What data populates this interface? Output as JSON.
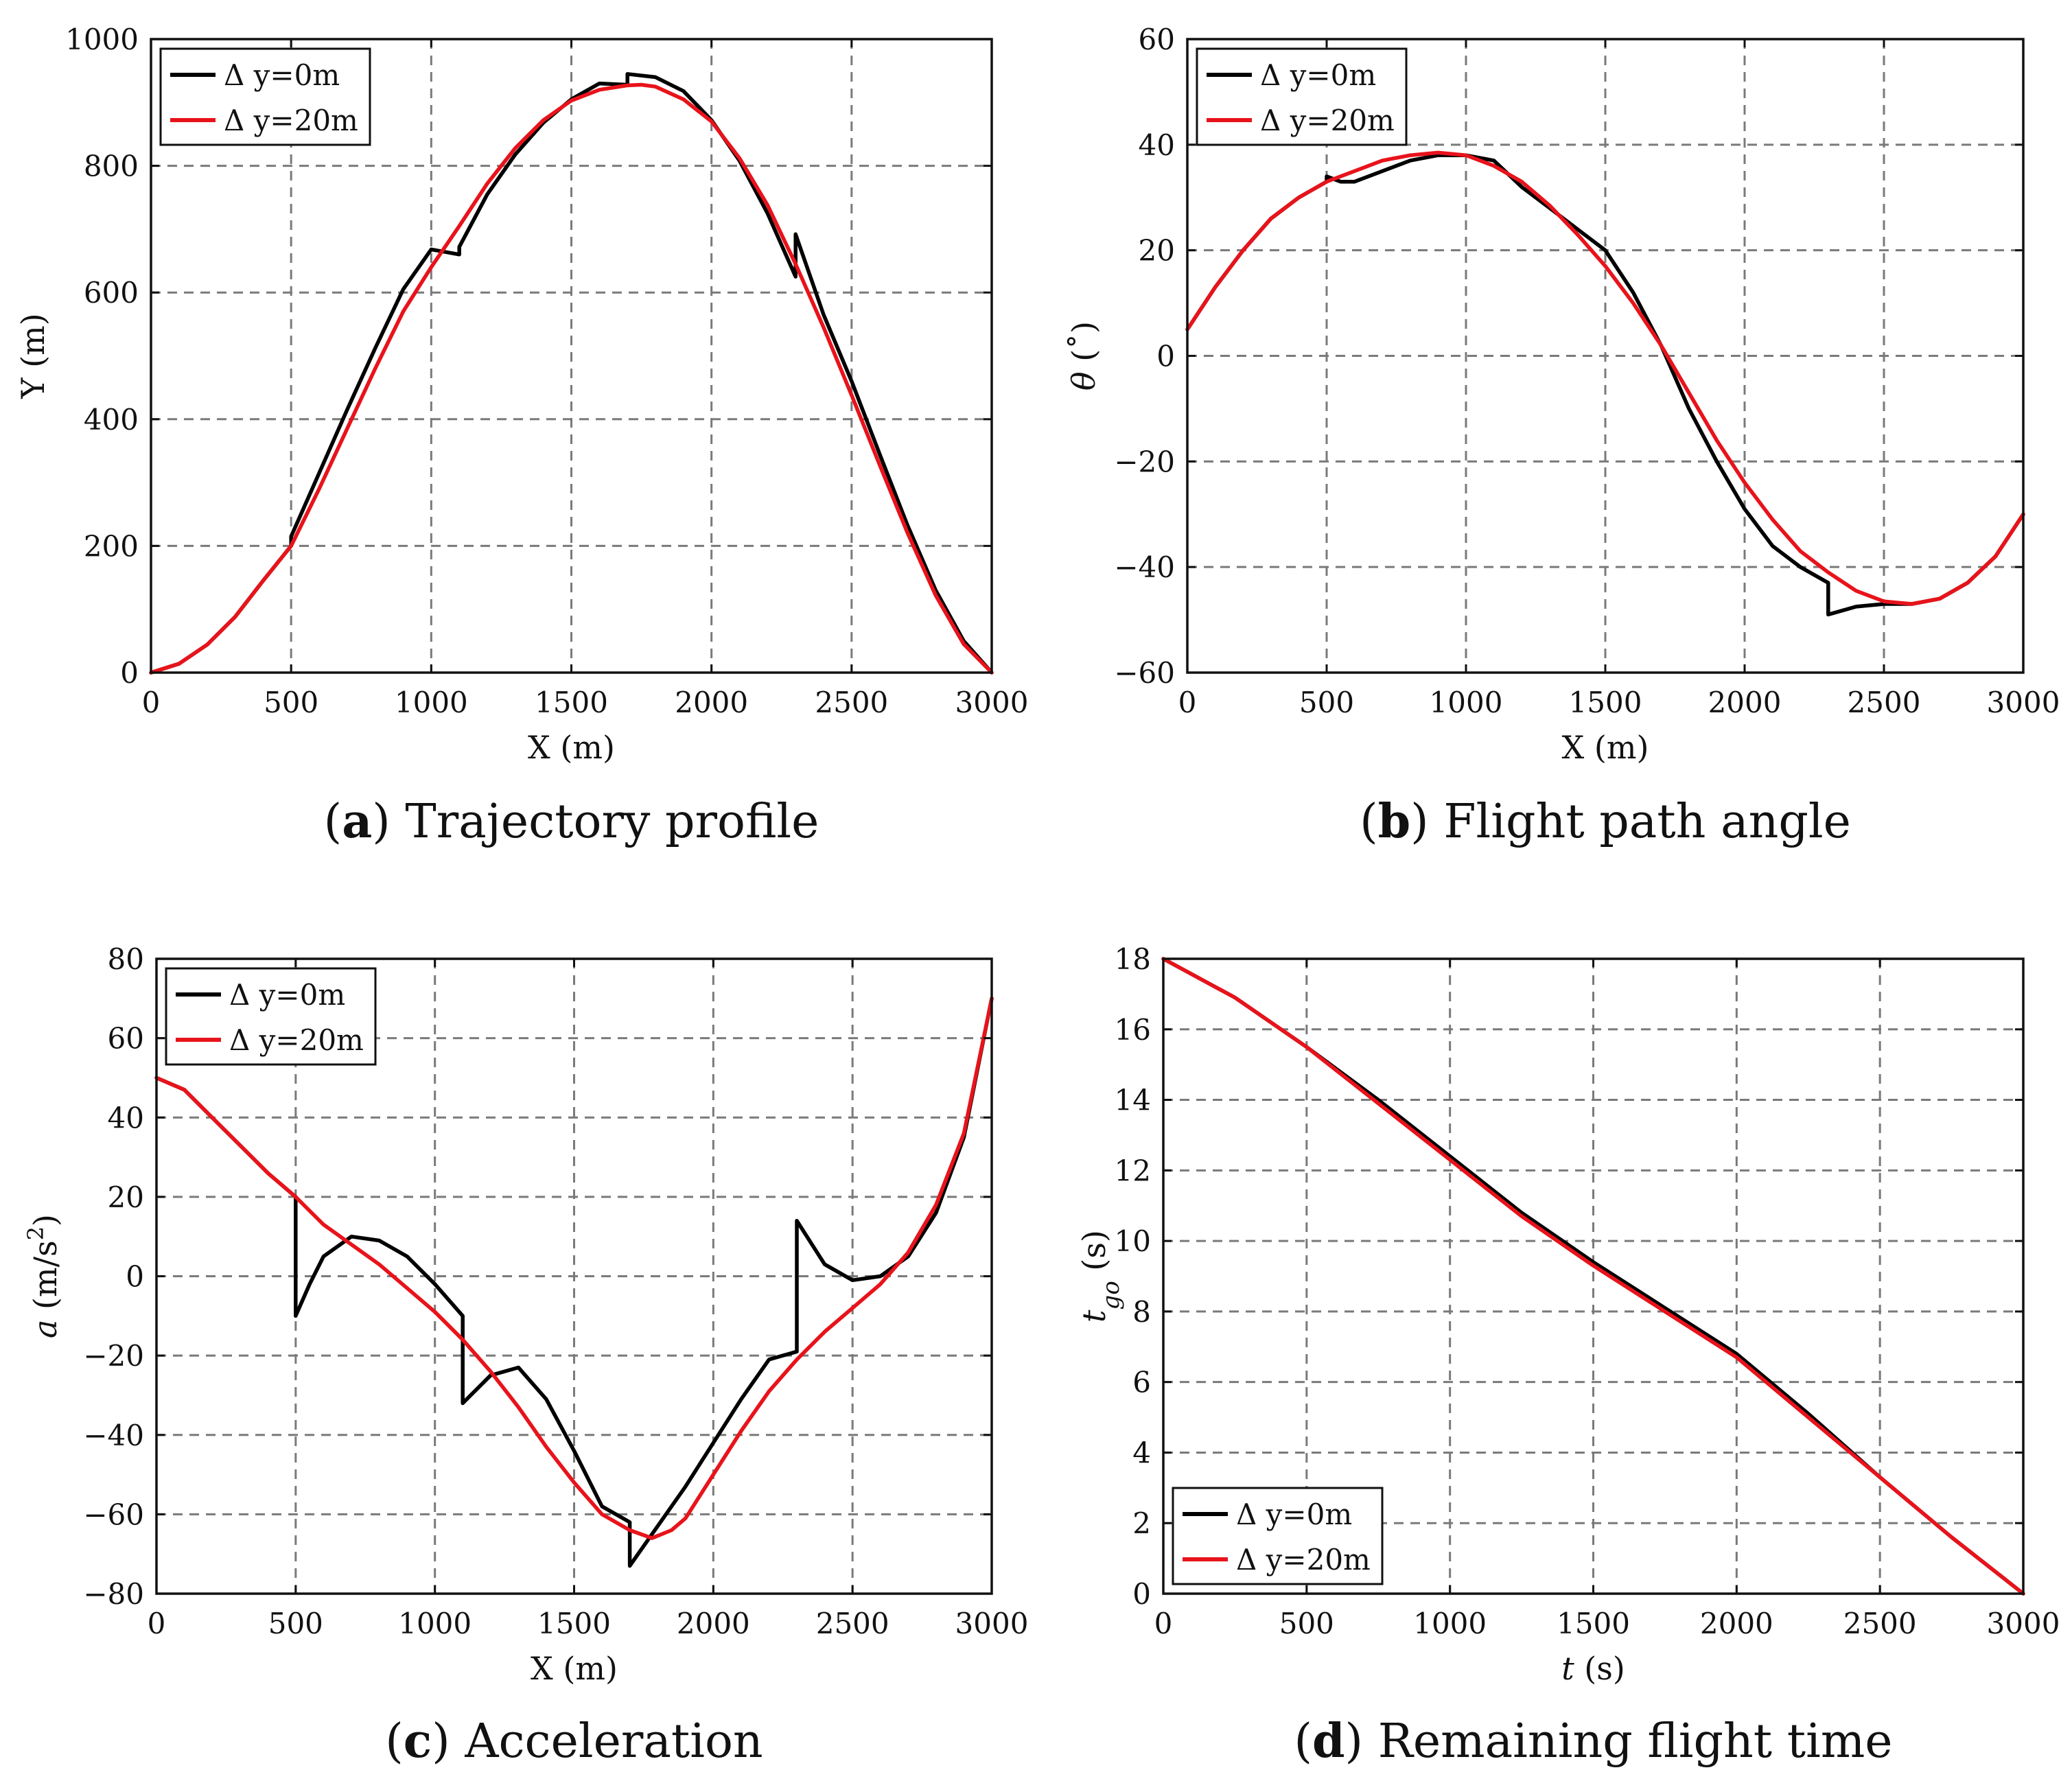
{
  "figure": {
    "colors": {
      "series_0": "#000000",
      "series_1": "#e8131b",
      "grid": "#7a7a7a"
    }
  },
  "chart_data": [
    {
      "id": "a",
      "type": "line",
      "caption_letter": "a",
      "caption_text": "Trajectory profile",
      "xlabel": "X (m)",
      "ylabel": "Y (m)",
      "xlim": [
        0,
        3000
      ],
      "ylim": [
        0,
        1000
      ],
      "xticks": [
        0,
        500,
        1000,
        1500,
        2000,
        2500,
        3000
      ],
      "yticks": [
        0,
        200,
        400,
        600,
        800,
        1000
      ],
      "tick_labels_x": [
        "0",
        "500",
        "1000",
        "1500",
        "2000",
        "2500",
        "3000"
      ],
      "tick_labels_y": [
        "0",
        "200",
        "400",
        "600",
        "800",
        "1000"
      ],
      "grid": true,
      "legend_position": "top-left",
      "series": [
        {
          "name": "Δ y=0m",
          "color": "#000000",
          "x": [
            0,
            100,
            200,
            300,
            400,
            500,
            500,
            600,
            700,
            800,
            900,
            1000,
            1100,
            1100,
            1200,
            1300,
            1400,
            1500,
            1600,
            1700,
            1700,
            1800,
            1900,
            2000,
            2100,
            2200,
            2300,
            2300,
            2400,
            2500,
            2600,
            2700,
            2800,
            2900,
            3000
          ],
          "values": [
            0,
            14,
            44,
            88,
            145,
            200,
            215,
            315,
            415,
            512,
            605,
            668,
            660,
            672,
            755,
            818,
            868,
            905,
            930,
            928,
            945,
            940,
            918,
            872,
            808,
            725,
            625,
            692,
            565,
            460,
            345,
            232,
            130,
            50,
            0
          ]
        },
        {
          "name": "Δ y=20m",
          "color": "#e8131b",
          "x": [
            0,
            100,
            200,
            300,
            400,
            500,
            600,
            700,
            800,
            900,
            1000,
            1100,
            1200,
            1300,
            1400,
            1500,
            1600,
            1700,
            1750,
            1800,
            1900,
            2000,
            2100,
            2200,
            2300,
            2400,
            2500,
            2600,
            2700,
            2800,
            2900,
            3000
          ],
          "values": [
            0,
            14,
            44,
            88,
            145,
            200,
            290,
            385,
            480,
            570,
            640,
            705,
            772,
            828,
            872,
            903,
            920,
            927,
            928,
            925,
            905,
            870,
            812,
            738,
            645,
            545,
            438,
            328,
            220,
            122,
            45,
            0
          ]
        }
      ]
    },
    {
      "id": "b",
      "type": "line",
      "caption_letter": "b",
      "caption_text": "Flight path angle",
      "xlabel": "X (m)",
      "ylabel": "θ (˚)",
      "xlim": [
        0,
        3000
      ],
      "ylim": [
        -60,
        60
      ],
      "xticks": [
        0,
        500,
        1000,
        1500,
        2000,
        2500,
        3000
      ],
      "yticks": [
        -60,
        -40,
        -20,
        0,
        20,
        40,
        60
      ],
      "tick_labels_x": [
        "0",
        "500",
        "1000",
        "1500",
        "2000",
        "2500",
        "3000"
      ],
      "tick_labels_y": [
        "−60",
        "−40",
        "−20",
        "0",
        "20",
        "40",
        "60"
      ],
      "grid": true,
      "legend_position": "top-left",
      "series": [
        {
          "name": "Δ y=0m",
          "color": "#000000",
          "x": [
            0,
            100,
            200,
            300,
            400,
            500,
            500,
            550,
            600,
            700,
            800,
            900,
            1000,
            1100,
            1100,
            1200,
            1300,
            1400,
            1500,
            1600,
            1700,
            1700,
            1800,
            1900,
            2000,
            2100,
            2200,
            2300,
            2300,
            2400,
            2500,
            2600,
            2700,
            2800,
            2900,
            3000
          ],
          "values": [
            5,
            13,
            20,
            26,
            30,
            33,
            34,
            33,
            33,
            35,
            37,
            38,
            38,
            37,
            37,
            32,
            28,
            24,
            20,
            12,
            2,
            2,
            -10,
            -20,
            -29,
            -36,
            -40,
            -43,
            -49,
            -47.5,
            -47,
            -47,
            -46,
            -43,
            -38,
            -30
          ]
        },
        {
          "name": "Δ y=20m",
          "color": "#e8131b",
          "x": [
            0,
            100,
            200,
            300,
            400,
            500,
            600,
            700,
            800,
            900,
            1000,
            1100,
            1200,
            1300,
            1400,
            1500,
            1600,
            1700,
            1800,
            1900,
            2000,
            2100,
            2200,
            2300,
            2400,
            2500,
            2600,
            2700,
            2800,
            2900,
            3000
          ],
          "values": [
            5,
            13,
            20,
            26,
            30,
            33,
            35,
            37,
            38,
            38.5,
            38,
            36,
            33,
            28.5,
            23,
            17,
            10,
            2,
            -7,
            -16,
            -24,
            -31,
            -37,
            -41,
            -44.5,
            -46.5,
            -47,
            -46,
            -43,
            -38,
            -30
          ]
        }
      ]
    },
    {
      "id": "c",
      "type": "line",
      "caption_letter": "c",
      "caption_text": "Acceleration",
      "xlabel": "X (m)",
      "ylabel": "a (m/s2)",
      "ylabel_parts": {
        "symbol": "a",
        "unit_base": "(m/s",
        "unit_exponent": "2",
        "unit_close": ")"
      },
      "xlim": [
        0,
        3000
      ],
      "ylim": [
        -80,
        80
      ],
      "xticks": [
        0,
        500,
        1000,
        1500,
        2000,
        2500,
        3000
      ],
      "yticks": [
        -80,
        -60,
        -40,
        -20,
        0,
        20,
        40,
        60,
        80
      ],
      "tick_labels_x": [
        "0",
        "500",
        "1000",
        "1500",
        "2000",
        "2500",
        "3000"
      ],
      "tick_labels_y": [
        "−80",
        "−60",
        "−40",
        "−20",
        "0",
        "20",
        "40",
        "60",
        "80"
      ],
      "grid": true,
      "legend_position": "top-left",
      "series": [
        {
          "name": "Δ y=0m",
          "color": "#000000",
          "x": [
            0,
            100,
            200,
            300,
            400,
            500,
            500,
            550,
            600,
            700,
            800,
            900,
            1000,
            1100,
            1100,
            1200,
            1300,
            1400,
            1500,
            1600,
            1700,
            1700,
            1800,
            1900,
            2000,
            2100,
            2200,
            2300,
            2300,
            2400,
            2500,
            2600,
            2700,
            2800,
            2900,
            3000
          ],
          "values": [
            50,
            47,
            40,
            33,
            26,
            20,
            -10,
            -2,
            5,
            10,
            9,
            5,
            -2,
            -10,
            -32,
            -25,
            -23,
            -31,
            -44,
            -58,
            -62,
            -73,
            -63,
            -53,
            -42,
            -31,
            -21,
            -19,
            14,
            3,
            -1,
            0,
            5,
            16,
            35,
            70
          ]
        },
        {
          "name": "Δ y=20m",
          "color": "#e8131b",
          "x": [
            0,
            100,
            200,
            300,
            400,
            500,
            600,
            700,
            800,
            900,
            1000,
            1100,
            1200,
            1300,
            1400,
            1500,
            1600,
            1700,
            1780,
            1850,
            1900,
            2000,
            2100,
            2200,
            2300,
            2400,
            2500,
            2600,
            2700,
            2800,
            2900,
            3000
          ],
          "values": [
            50,
            47,
            40,
            33,
            26,
            20,
            13,
            8,
            3,
            -3,
            -9,
            -16,
            -24,
            -33,
            -43,
            -52,
            -60,
            -64,
            -66,
            -64,
            -61,
            -50,
            -39,
            -29,
            -21,
            -14,
            -8,
            -2,
            6,
            18,
            36,
            70
          ]
        }
      ]
    },
    {
      "id": "d",
      "type": "line",
      "caption_letter": "d",
      "caption_text": "Remaining flight time",
      "xlabel": "t (s)",
      "ylabel": "tgo (s)",
      "ylabel_parts": {
        "symbol": "t",
        "subscript": "go",
        "unit": "(s)"
      },
      "xlabel_parts": {
        "symbol": "t",
        "unit": "(s)"
      },
      "xlim": [
        0,
        3000
      ],
      "ylim": [
        0,
        18
      ],
      "xticks": [
        0,
        500,
        1000,
        1500,
        2000,
        2500,
        3000
      ],
      "yticks": [
        0,
        2,
        4,
        6,
        8,
        10,
        12,
        14,
        16,
        18
      ],
      "tick_labels_x": [
        "0",
        "500",
        "1000",
        "1500",
        "2000",
        "2500",
        "3000"
      ],
      "tick_labels_y": [
        "0",
        "2",
        "4",
        "6",
        "8",
        "10",
        "12",
        "14",
        "16",
        "18"
      ],
      "grid": true,
      "legend_position": "bottom-left",
      "series": [
        {
          "name": "Δ y=0m",
          "color": "#000000",
          "x": [
            0,
            250,
            500,
            750,
            1000,
            1250,
            1500,
            1750,
            2000,
            2250,
            2500,
            2750,
            3000
          ],
          "values": [
            18,
            16.9,
            15.5,
            14.0,
            12.4,
            10.8,
            9.4,
            8.1,
            6.8,
            5.1,
            3.3,
            1.6,
            0
          ]
        },
        {
          "name": "Δ y=20m",
          "color": "#e8131b",
          "x": [
            0,
            250,
            500,
            750,
            1000,
            1250,
            1500,
            1750,
            2000,
            2250,
            2500,
            2750,
            3000
          ],
          "values": [
            18,
            16.9,
            15.5,
            13.9,
            12.3,
            10.7,
            9.3,
            8.0,
            6.7,
            5.0,
            3.3,
            1.6,
            0
          ]
        }
      ]
    }
  ]
}
